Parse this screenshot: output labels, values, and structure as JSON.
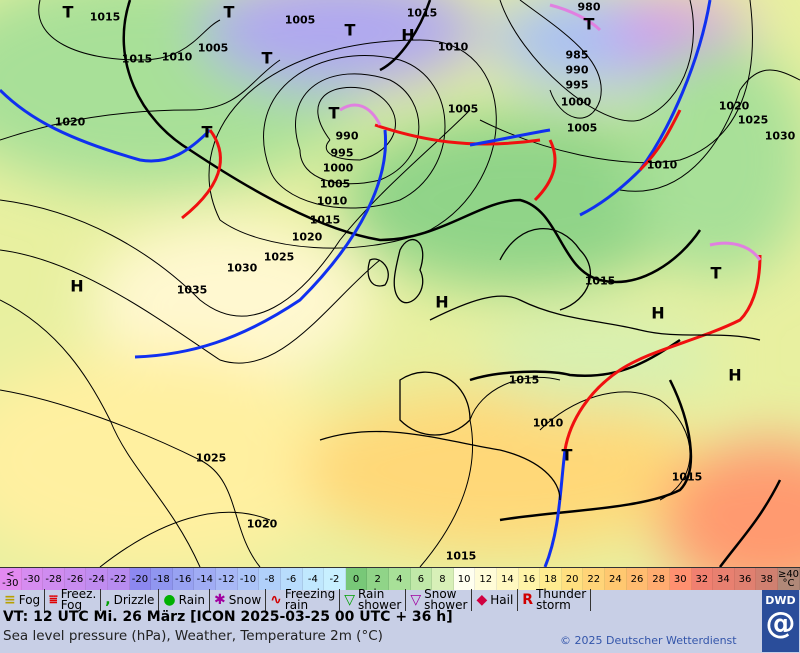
{
  "map": {
    "pressure_labels": [
      "1015",
      "1005",
      "1015",
      "1010",
      "1005",
      "1015",
      "1010",
      "1020",
      "990",
      "995",
      "1000",
      "1005",
      "1010",
      "1015",
      "1020",
      "1025",
      "1030",
      "1035",
      "985",
      "990",
      "995",
      "1000",
      "1005",
      "1005",
      "1010",
      "1020",
      "1025",
      "1030",
      "1015",
      "1015",
      "1010",
      "1015",
      "1025",
      "1020",
      "1015",
      "980"
    ],
    "centers": [
      "T",
      "T",
      "T",
      "H",
      "T",
      "T",
      "T",
      "T",
      "H",
      "H",
      "H",
      "T",
      "H",
      "T"
    ],
    "colors": {
      "cold_front": "#1030f0",
      "warm_front": "#f01010",
      "occlusion": "#e080e0",
      "isobar": "#000000"
    }
  },
  "scale": [
    {
      "label": "<\n-30",
      "color": "#e28af0"
    },
    {
      "label": "-30",
      "color": "#d68cf0"
    },
    {
      "label": "-28",
      "color": "#cf8cf0"
    },
    {
      "label": "-26",
      "color": "#c88cf0"
    },
    {
      "label": "-24",
      "color": "#c08cf0"
    },
    {
      "label": "-22",
      "color": "#b88cf0"
    },
    {
      "label": "-20",
      "color": "#8c88f0"
    },
    {
      "label": "-18",
      "color": "#9096f0"
    },
    {
      "label": "-16",
      "color": "#98a2f2"
    },
    {
      "label": "-14",
      "color": "#a0acf4"
    },
    {
      "label": "-12",
      "color": "#a8b8f6"
    },
    {
      "label": "-10",
      "color": "#acc4f8"
    },
    {
      "label": "-8",
      "color": "#b0d0fa"
    },
    {
      "label": "-6",
      "color": "#b8dcfc"
    },
    {
      "label": "-4",
      "color": "#c0e8fe"
    },
    {
      "label": "-2",
      "color": "#c8f0ff"
    },
    {
      "label": "0",
      "color": "#78c878"
    },
    {
      "label": "2",
      "color": "#90d488"
    },
    {
      "label": "4",
      "color": "#a8e098"
    },
    {
      "label": "6",
      "color": "#c0e8a8"
    },
    {
      "label": "8",
      "color": "#d8f0b8"
    },
    {
      "label": "10",
      "color": "#fffff0"
    },
    {
      "label": "12",
      "color": "#fffcd8"
    },
    {
      "label": "14",
      "color": "#fff8c0"
    },
    {
      "label": "16",
      "color": "#fff4a8"
    },
    {
      "label": "18",
      "color": "#ffec90"
    },
    {
      "label": "20",
      "color": "#ffe080"
    },
    {
      "label": "22",
      "color": "#ffd478"
    },
    {
      "label": "24",
      "color": "#ffc870"
    },
    {
      "label": "26",
      "color": "#ffbc70"
    },
    {
      "label": "28",
      "color": "#ffac70"
    },
    {
      "label": "30",
      "color": "#ff9070"
    },
    {
      "label": "32",
      "color": "#f08070"
    },
    {
      "label": "34",
      "color": "#e88070"
    },
    {
      "label": "36",
      "color": "#e08070"
    },
    {
      "label": "38",
      "color": "#d08070"
    },
    {
      "label": "≥40\n°C",
      "color": "#b08878"
    }
  ],
  "legend": [
    {
      "icon": "fog-icon",
      "glyph": "≡",
      "color": "#b8a000",
      "label": "Fog"
    },
    {
      "icon": "freezing-fog-icon",
      "glyph": "⩸",
      "color": "#e00000",
      "label": "Freez.\nFog"
    },
    {
      "icon": "drizzle-icon",
      "glyph": ",",
      "color": "#00a000",
      "label": "Drizzle"
    },
    {
      "icon": "rain-icon",
      "glyph": "●",
      "color": "#00b000",
      "label": "Rain"
    },
    {
      "icon": "snow-icon",
      "glyph": "✱",
      "color": "#a000a0",
      "label": "Snow"
    },
    {
      "icon": "freezing-rain-icon",
      "glyph": "∿",
      "color": "#d00000",
      "label": "Freezing\nrain"
    },
    {
      "icon": "rain-shower-icon",
      "glyph": "▽",
      "color": "#00a000",
      "label": "Rain\nshower"
    },
    {
      "icon": "snow-shower-icon",
      "glyph": "▽",
      "color": "#a000a0",
      "label": "Snow\nshower"
    },
    {
      "icon": "hail-icon",
      "glyph": "◆",
      "color": "#d00040",
      "label": "Hail"
    },
    {
      "icon": "thunderstorm-icon",
      "glyph": "R",
      "color": "#d00000",
      "label": "Thunder\nstorm"
    }
  ],
  "footer": {
    "valid_time": "VT: 12 UTC Mi.  26 März [ICON 2025-03-25  00 UTC + 36 h]",
    "subtitle": "Sea level pressure (hPa), Weather, Temperature 2m (°C)",
    "copyright": "© 2025 Deutscher Wetterdienst",
    "logo": "DWD"
  }
}
